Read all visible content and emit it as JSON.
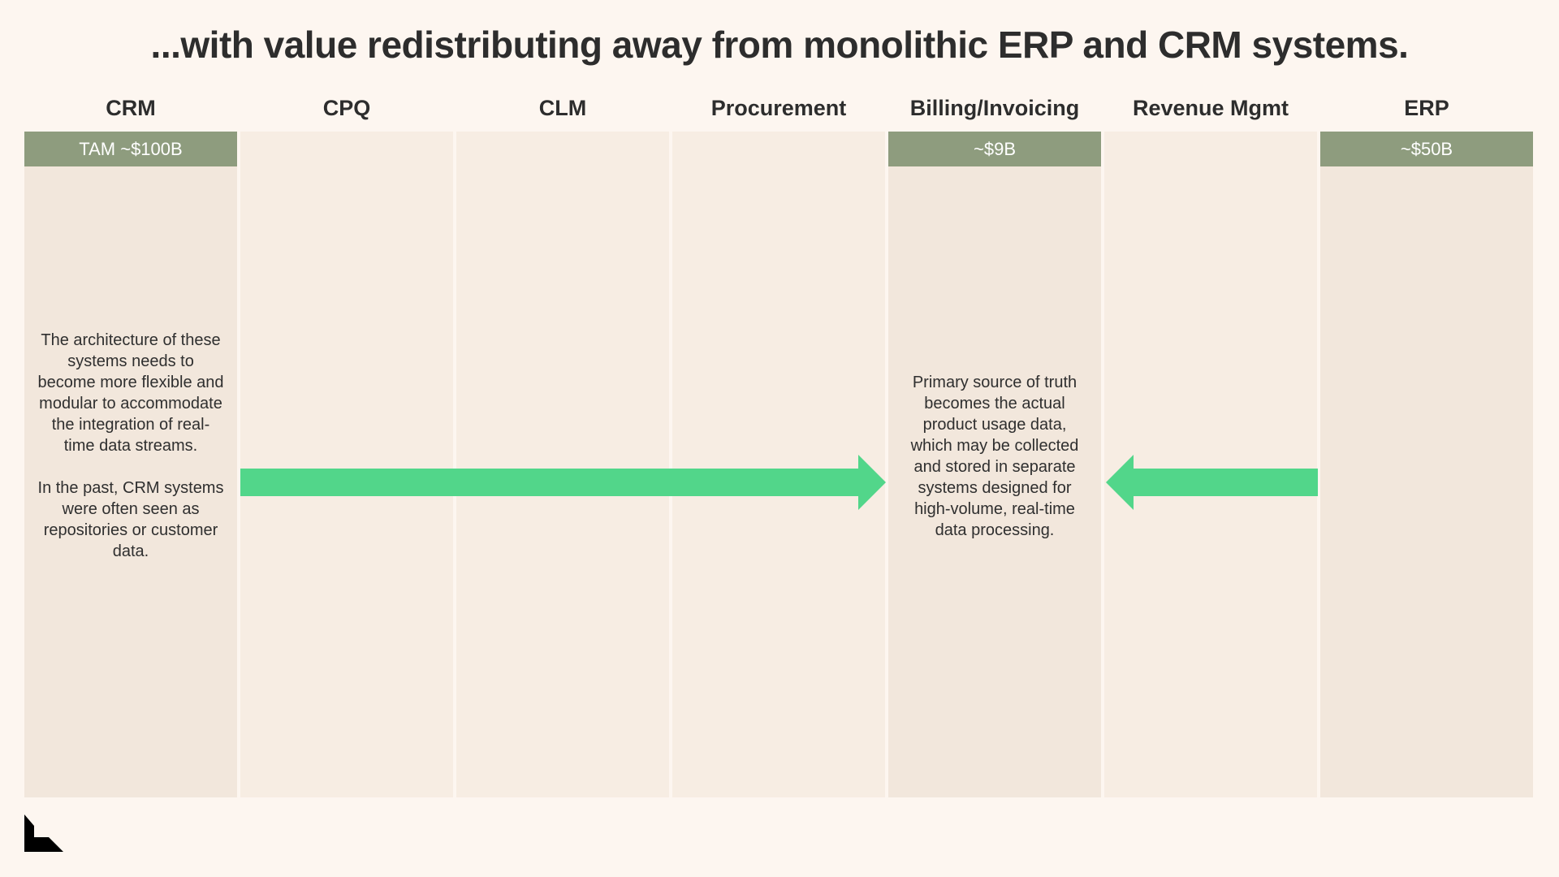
{
  "title": "...with value redistributing away from monolithic ERP and CRM systems.",
  "columns": [
    {
      "header": "CRM",
      "badge": "TAM ~$100B",
      "note": "The architecture of these systems needs to become more flexible and modular to accommodate the integration of real-time data streams.\n\nIn the past, CRM systems were often seen as repositories or customer data."
    },
    {
      "header": "CPQ"
    },
    {
      "header": "CLM"
    },
    {
      "header": "Procurement"
    },
    {
      "header": "Billing/Invoicing",
      "badge": "~$9B",
      "note": "Primary source of truth becomes the actual product usage data, which may be collected and stored in separate systems designed for high-volume, real-time data processing."
    },
    {
      "header": "Revenue Mgmt"
    },
    {
      "header": "ERP",
      "badge": "~$50B"
    }
  ],
  "colors": {
    "background": "#fdf6f0",
    "column": "#f7ede3",
    "badge": "#8e9c7e",
    "arrow": "#52d68a",
    "text": "#2d2d2d"
  },
  "icons": {
    "arrow_right": "arrow-right-icon",
    "arrow_left": "arrow-left-icon",
    "logo": "brand-logo-icon"
  }
}
